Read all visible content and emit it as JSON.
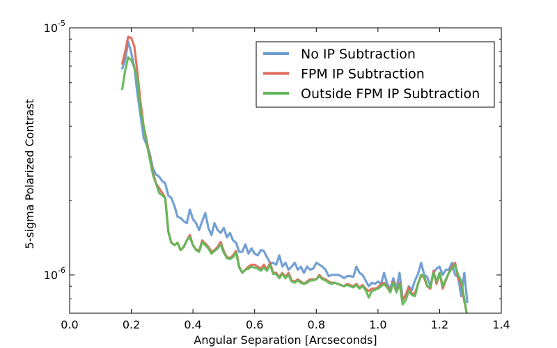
{
  "chart_data": {
    "type": "line",
    "title": "",
    "xlabel": "Angular Separation [Arcseconds]",
    "ylabel": "5-sigma Polarized Contrast",
    "xlim": [
      0.0,
      1.4
    ],
    "ylim": [
      7e-07,
      1e-05
    ],
    "yscale": "log",
    "grid": false,
    "legend_position": "top-right",
    "x_ticks": [
      0.0,
      0.2,
      0.4,
      0.6,
      0.8,
      1.0,
      1.2,
      1.4
    ],
    "x_tick_labels": [
      "0.0",
      "0.2",
      "0.4",
      "0.6",
      "0.8",
      "1.0",
      "1.2",
      "1.4"
    ],
    "y_major_ticks": [
      {
        "value": 1e-06,
        "base": "10",
        "exp": "-6"
      },
      {
        "value": 1e-05,
        "base": "10",
        "exp": "-5"
      }
    ],
    "x": [
      0.17,
      0.18,
      0.19,
      0.2,
      0.21,
      0.22,
      0.23,
      0.24,
      0.25,
      0.26,
      0.27,
      0.28,
      0.29,
      0.3,
      0.31,
      0.32,
      0.33,
      0.34,
      0.35,
      0.36,
      0.37,
      0.38,
      0.39,
      0.4,
      0.41,
      0.42,
      0.43,
      0.44,
      0.45,
      0.46,
      0.47,
      0.48,
      0.49,
      0.5,
      0.51,
      0.52,
      0.53,
      0.54,
      0.55,
      0.56,
      0.57,
      0.58,
      0.59,
      0.6,
      0.61,
      0.62,
      0.63,
      0.64,
      0.65,
      0.66,
      0.67,
      0.68,
      0.69,
      0.7,
      0.71,
      0.72,
      0.73,
      0.74,
      0.75,
      0.76,
      0.77,
      0.78,
      0.79,
      0.8,
      0.81,
      0.82,
      0.83,
      0.84,
      0.85,
      0.86,
      0.87,
      0.88,
      0.89,
      0.9,
      0.91,
      0.92,
      0.93,
      0.94,
      0.95,
      0.96,
      0.97,
      0.98,
      0.99,
      1.0,
      1.01,
      1.02,
      1.03,
      1.04,
      1.05,
      1.06,
      1.07,
      1.08,
      1.09,
      1.1,
      1.11,
      1.12,
      1.13,
      1.14,
      1.15,
      1.16,
      1.17,
      1.18,
      1.19,
      1.2,
      1.21,
      1.22,
      1.23,
      1.24,
      1.25,
      1.26,
      1.27,
      1.28,
      1.29
    ],
    "series": [
      {
        "name": "No IP Subtraction",
        "color": "#6c9bd2",
        "values": [
          6.8e-06,
          7.4e-06,
          8.8e-06,
          7.9e-06,
          6.9e-06,
          5.4e-06,
          4.4e-06,
          3.6e-06,
          3.35e-06,
          3.1e-06,
          2.7e-06,
          2.55e-06,
          2.5e-06,
          2.4e-06,
          2.35e-06,
          2.1e-06,
          2.05e-06,
          1.9e-06,
          1.72e-06,
          1.7e-06,
          1.65e-06,
          1.62e-06,
          1.84e-06,
          1.68e-06,
          1.62e-06,
          1.52e-06,
          1.65e-06,
          1.78e-06,
          1.55e-06,
          1.45e-06,
          1.62e-06,
          1.52e-06,
          1.48e-06,
          1.55e-06,
          1.42e-06,
          1.48e-06,
          1.38e-06,
          1.35e-06,
          1.24e-06,
          1.24e-06,
          1.33e-06,
          1.22e-06,
          1.28e-06,
          1.22e-06,
          1.2e-06,
          1.26e-06,
          1.25e-06,
          1.18e-06,
          1.12e-06,
          1.12e-06,
          1.1e-06,
          1.2e-06,
          1.08e-06,
          1.12e-06,
          1.05e-06,
          1.08e-06,
          1.12e-06,
          1.05e-06,
          1.08e-06,
          1.02e-06,
          1.08e-06,
          1.05e-06,
          1.06e-06,
          1.12e-06,
          1.1e-06,
          1.08e-06,
          1.05e-06,
          9.9e-07,
          1e-06,
          1e-06,
          1e-06,
          9.9e-07,
          9.7e-07,
          9.9e-07,
          9.9e-07,
          9.8e-07,
          1.08e-06,
          1.02e-06,
          1e-06,
          9.5e-07,
          9e-07,
          9.3e-07,
          9.2e-07,
          9.4e-07,
          9.2e-07,
          1.02e-06,
          9.2e-07,
          8.8e-07,
          9.7e-07,
          8.8e-07,
          1.02e-06,
          8e-07,
          8.2e-07,
          9e-07,
          8.7e-07,
          9.5e-07,
          1.01e-06,
          1.12e-06,
          1e-06,
          9.8e-07,
          9e-07,
          1.02e-06,
          1.06e-06,
          1.08e-06,
          1e-06,
          1.05e-06,
          1.05e-06,
          1.12e-06,
          1e-06,
          9.8e-07,
          8.2e-07,
          1.02e-06,
          7.7e-07
        ]
      },
      {
        "name": "FPM IP Subtraction",
        "color": "#e06a5a",
        "values": [
          7.1e-06,
          8e-06,
          9.2e-06,
          9.1e-06,
          8.4e-06,
          6.6e-06,
          5e-06,
          4e-06,
          3.5e-06,
          3e-06,
          2.6e-06,
          2.35e-06,
          2.25e-06,
          2.15e-06,
          2.05e-06,
          1.5e-06,
          1.35e-06,
          1.32e-06,
          1.35e-06,
          1.26e-06,
          1.3e-06,
          1.38e-06,
          1.45e-06,
          1.32e-06,
          1.27e-06,
          1.25e-06,
          1.38e-06,
          1.34e-06,
          1.3e-06,
          1.24e-06,
          1.26e-06,
          1.3e-06,
          1.36e-06,
          1.25e-06,
          1.18e-06,
          1.17e-06,
          1.2e-06,
          1.25e-06,
          1.08e-06,
          1.02e-06,
          1.05e-06,
          1.08e-06,
          1.1e-06,
          1.1e-06,
          1.08e-06,
          1.06e-06,
          1.1e-06,
          1.05e-06,
          1.12e-06,
          1.02e-06,
          1.02e-06,
          9.8e-07,
          1.02e-06,
          9.8e-07,
          1.02e-06,
          9.5e-07,
          9.4e-07,
          9.6e-07,
          9.4e-07,
          9.2e-07,
          9.4e-07,
          9.6e-07,
          9.6e-07,
          9.6e-07,
          1e-06,
          9.7e-07,
          9.6e-07,
          9.4e-07,
          9.3e-07,
          9.3e-07,
          9.2e-07,
          9.1e-07,
          9e-07,
          9.2e-07,
          9.1e-07,
          9e-07,
          9.2e-07,
          8.9e-07,
          9.1e-07,
          8.8e-07,
          8.6e-07,
          8.8e-07,
          8.8e-07,
          8.9e-07,
          9.2e-07,
          9.3e-07,
          9e-07,
          8.6e-07,
          9.4e-07,
          8.6e-07,
          9.3e-07,
          7.9e-07,
          8.3e-07,
          8.9e-07,
          8.4e-07,
          8.4e-07,
          9.2e-07,
          1e-06,
          9.7e-07,
          9e-07,
          8.8e-07,
          1.04e-06,
          9.2e-07,
          1.02e-06,
          8.8e-07,
          9.5e-07,
          1.02e-06,
          1.08e-06,
          1.12e-06,
          9.7e-07,
          9.2e-07,
          7.8e-07,
          6.8e-07
        ]
      },
      {
        "name": "Outside FPM IP Subtraction",
        "color": "#62b85a",
        "values": [
          5.6e-06,
          6.7e-06,
          7.6e-06,
          7.4e-06,
          6.9e-06,
          6.2e-06,
          4.6e-06,
          4e-06,
          3.4e-06,
          2.95e-06,
          2.55e-06,
          2.35e-06,
          2.15e-06,
          2.1e-06,
          2.05e-06,
          1.5e-06,
          1.35e-06,
          1.32e-06,
          1.35e-06,
          1.26e-06,
          1.3e-06,
          1.38e-06,
          1.42e-06,
          1.32e-06,
          1.26e-06,
          1.24e-06,
          1.36e-06,
          1.32e-06,
          1.28e-06,
          1.22e-06,
          1.25e-06,
          1.28e-06,
          1.33e-06,
          1.23e-06,
          1.17e-06,
          1.16e-06,
          1.18e-06,
          1.23e-06,
          1.07e-06,
          1.02e-06,
          1.05e-06,
          1.06e-06,
          1.08e-06,
          1.07e-06,
          1.06e-06,
          1.04e-06,
          1.07e-06,
          1.04e-06,
          1.1e-06,
          1.01e-06,
          1.01e-06,
          9.7e-07,
          1.01e-06,
          9.7e-07,
          1e-06,
          9.4e-07,
          9.3e-07,
          9.5e-07,
          9.3e-07,
          9.2e-07,
          9.3e-07,
          9.5e-07,
          9.5e-07,
          9.6e-07,
          9.9e-07,
          9.6e-07,
          9.5e-07,
          9.3e-07,
          9.2e-07,
          9.3e-07,
          9.2e-07,
          9.1e-07,
          9e-07,
          9.1e-07,
          9e-07,
          8.9e-07,
          9.1e-07,
          8.8e-07,
          9e-07,
          8.7e-07,
          8.1e-07,
          8.6e-07,
          8.7e-07,
          8.8e-07,
          9e-07,
          9.2e-07,
          8.9e-07,
          8.5e-07,
          9.3e-07,
          8.5e-07,
          9.2e-07,
          7.6e-07,
          7.9e-07,
          8.6e-07,
          8.3e-07,
          8.2e-07,
          9.2e-07,
          1e-06,
          9.9e-07,
          9e-07,
          8.9e-07,
          1.02e-06,
          9.4e-07,
          1.02e-06,
          9e-07,
          9.6e-07,
          1.02e-06,
          1.06e-06,
          1.1e-06,
          1e-06,
          9.5e-07,
          8e-07,
          6.7e-07
        ]
      }
    ]
  }
}
